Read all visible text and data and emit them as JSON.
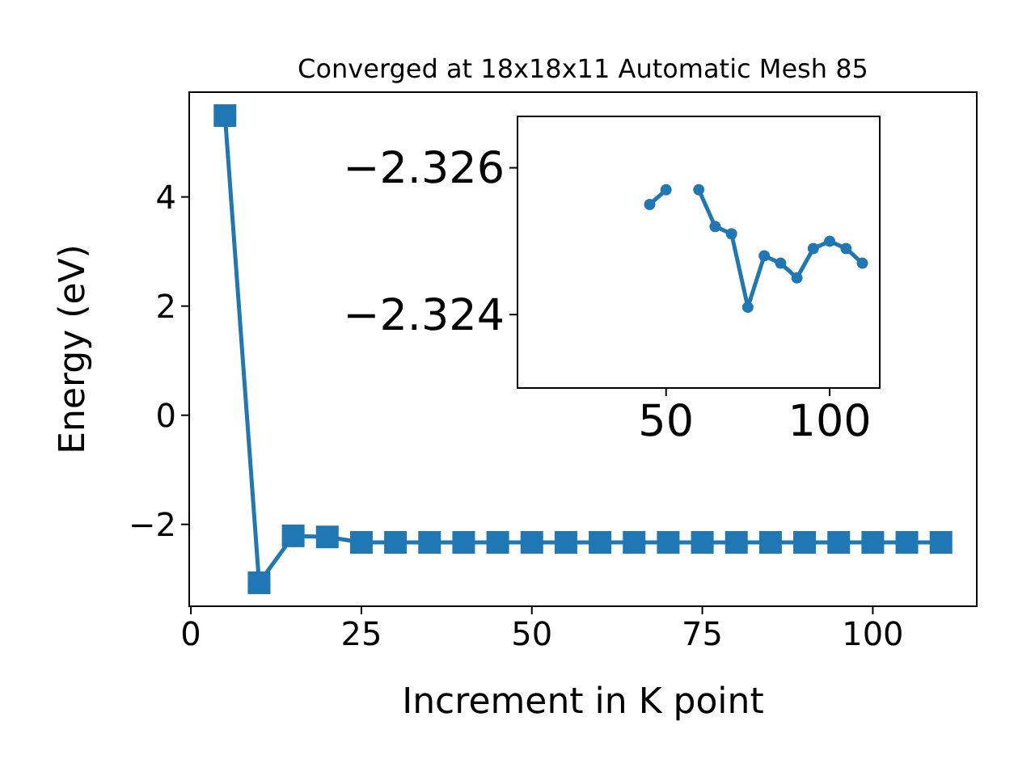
{
  "chart_data": [
    {
      "type": "line",
      "title": "Converged at 18x18x11 Automatic Mesh 85",
      "xlabel": "Increment in K point",
      "ylabel": "Energy (eV)",
      "marker": "square",
      "x": [
        5,
        10,
        15,
        20,
        25,
        30,
        35,
        40,
        45,
        50,
        55,
        60,
        65,
        70,
        75,
        80,
        85,
        90,
        95,
        100,
        105,
        110
      ],
      "series": [
        {
          "color": "#1f77b4",
          "values": [
            5.49,
            -3.07,
            -2.21,
            -2.23,
            -2.33,
            -2.33,
            -2.33,
            -2.33,
            -2.33,
            -2.33,
            -2.33,
            -2.33,
            -2.33,
            -2.33,
            -2.33,
            -2.33,
            -2.33,
            -2.33,
            -2.33,
            -2.33,
            -2.33,
            -2.33
          ]
        }
      ],
      "xlim": [
        -0.25,
        115.25
      ],
      "ylim": [
        -3.5,
        5.92
      ],
      "xticks": [
        0,
        25,
        50,
        75,
        100
      ],
      "yticks": [
        {
          "value": -2,
          "label": "−2"
        },
        0,
        2,
        4
      ]
    },
    {
      "type": "line",
      "marker": "circle",
      "x": [
        45,
        50,
        55,
        60,
        65,
        70,
        75,
        80,
        85,
        90,
        95,
        100,
        105,
        110
      ],
      "series": [
        {
          "color": "#1f77b4",
          "values": [
            -2.3255,
            -2.3257,
            null,
            -2.3257,
            -2.3252,
            -2.3251,
            -2.3241,
            -2.3248,
            -2.3247,
            -2.3245,
            -2.3249,
            -2.325,
            -2.3249,
            -2.3247
          ]
        }
      ],
      "xlim": [
        4.6,
        115.3
      ],
      "ylim": [
        -2.323,
        -2.3267
      ],
      "xticks": [
        50,
        100
      ],
      "yticks": [
        {
          "value": -2.326,
          "label": "−2.326"
        },
        {
          "value": -2.324,
          "label": "−2.324"
        }
      ]
    }
  ]
}
